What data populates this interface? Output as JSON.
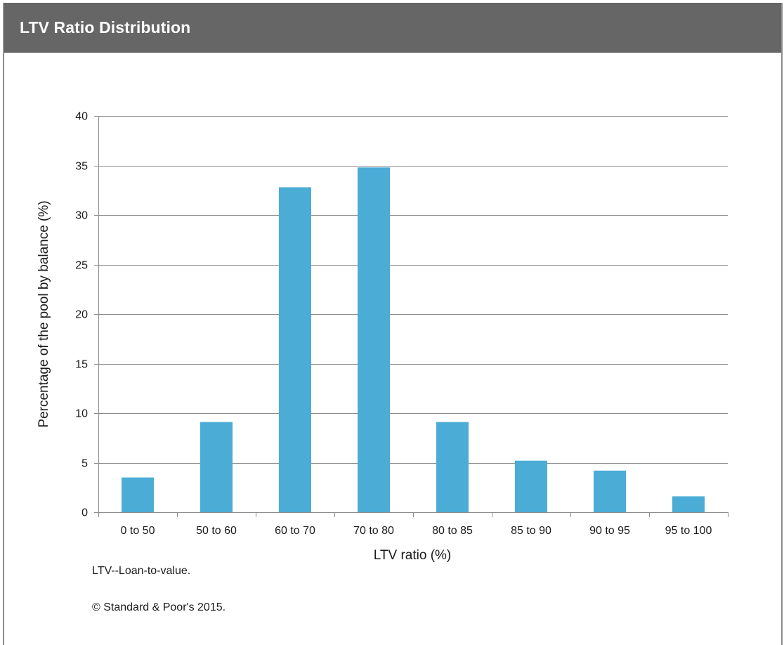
{
  "header": {
    "title": "LTV Ratio Distribution"
  },
  "colors": {
    "header_bg": "#666666",
    "bar": "#4BACD6",
    "grid": "#8c8c8c",
    "axis": "#8c8c8c",
    "text": "#1a1a1a"
  },
  "chart_data": {
    "type": "bar",
    "categories": [
      "0 to 50",
      "50 to 60",
      "60 to 70",
      "70 to 80",
      "80 to 85",
      "85 to 90",
      "90 to 95",
      "95 to 100"
    ],
    "values": [
      3.5,
      9.1,
      32.8,
      34.8,
      9.1,
      5.2,
      4.2,
      1.6
    ],
    "xlabel": "LTV ratio (%)",
    "ylabel": "Percentage of the pool by balance (%)",
    "ylim": [
      0,
      40
    ],
    "yticks": [
      0,
      5,
      10,
      15,
      20,
      25,
      30,
      35,
      40
    ],
    "grid": true,
    "legend": false
  },
  "notes": {
    "footnote": "LTV--Loan-to-value.",
    "copyright": "© Standard & Poor's 2015."
  }
}
